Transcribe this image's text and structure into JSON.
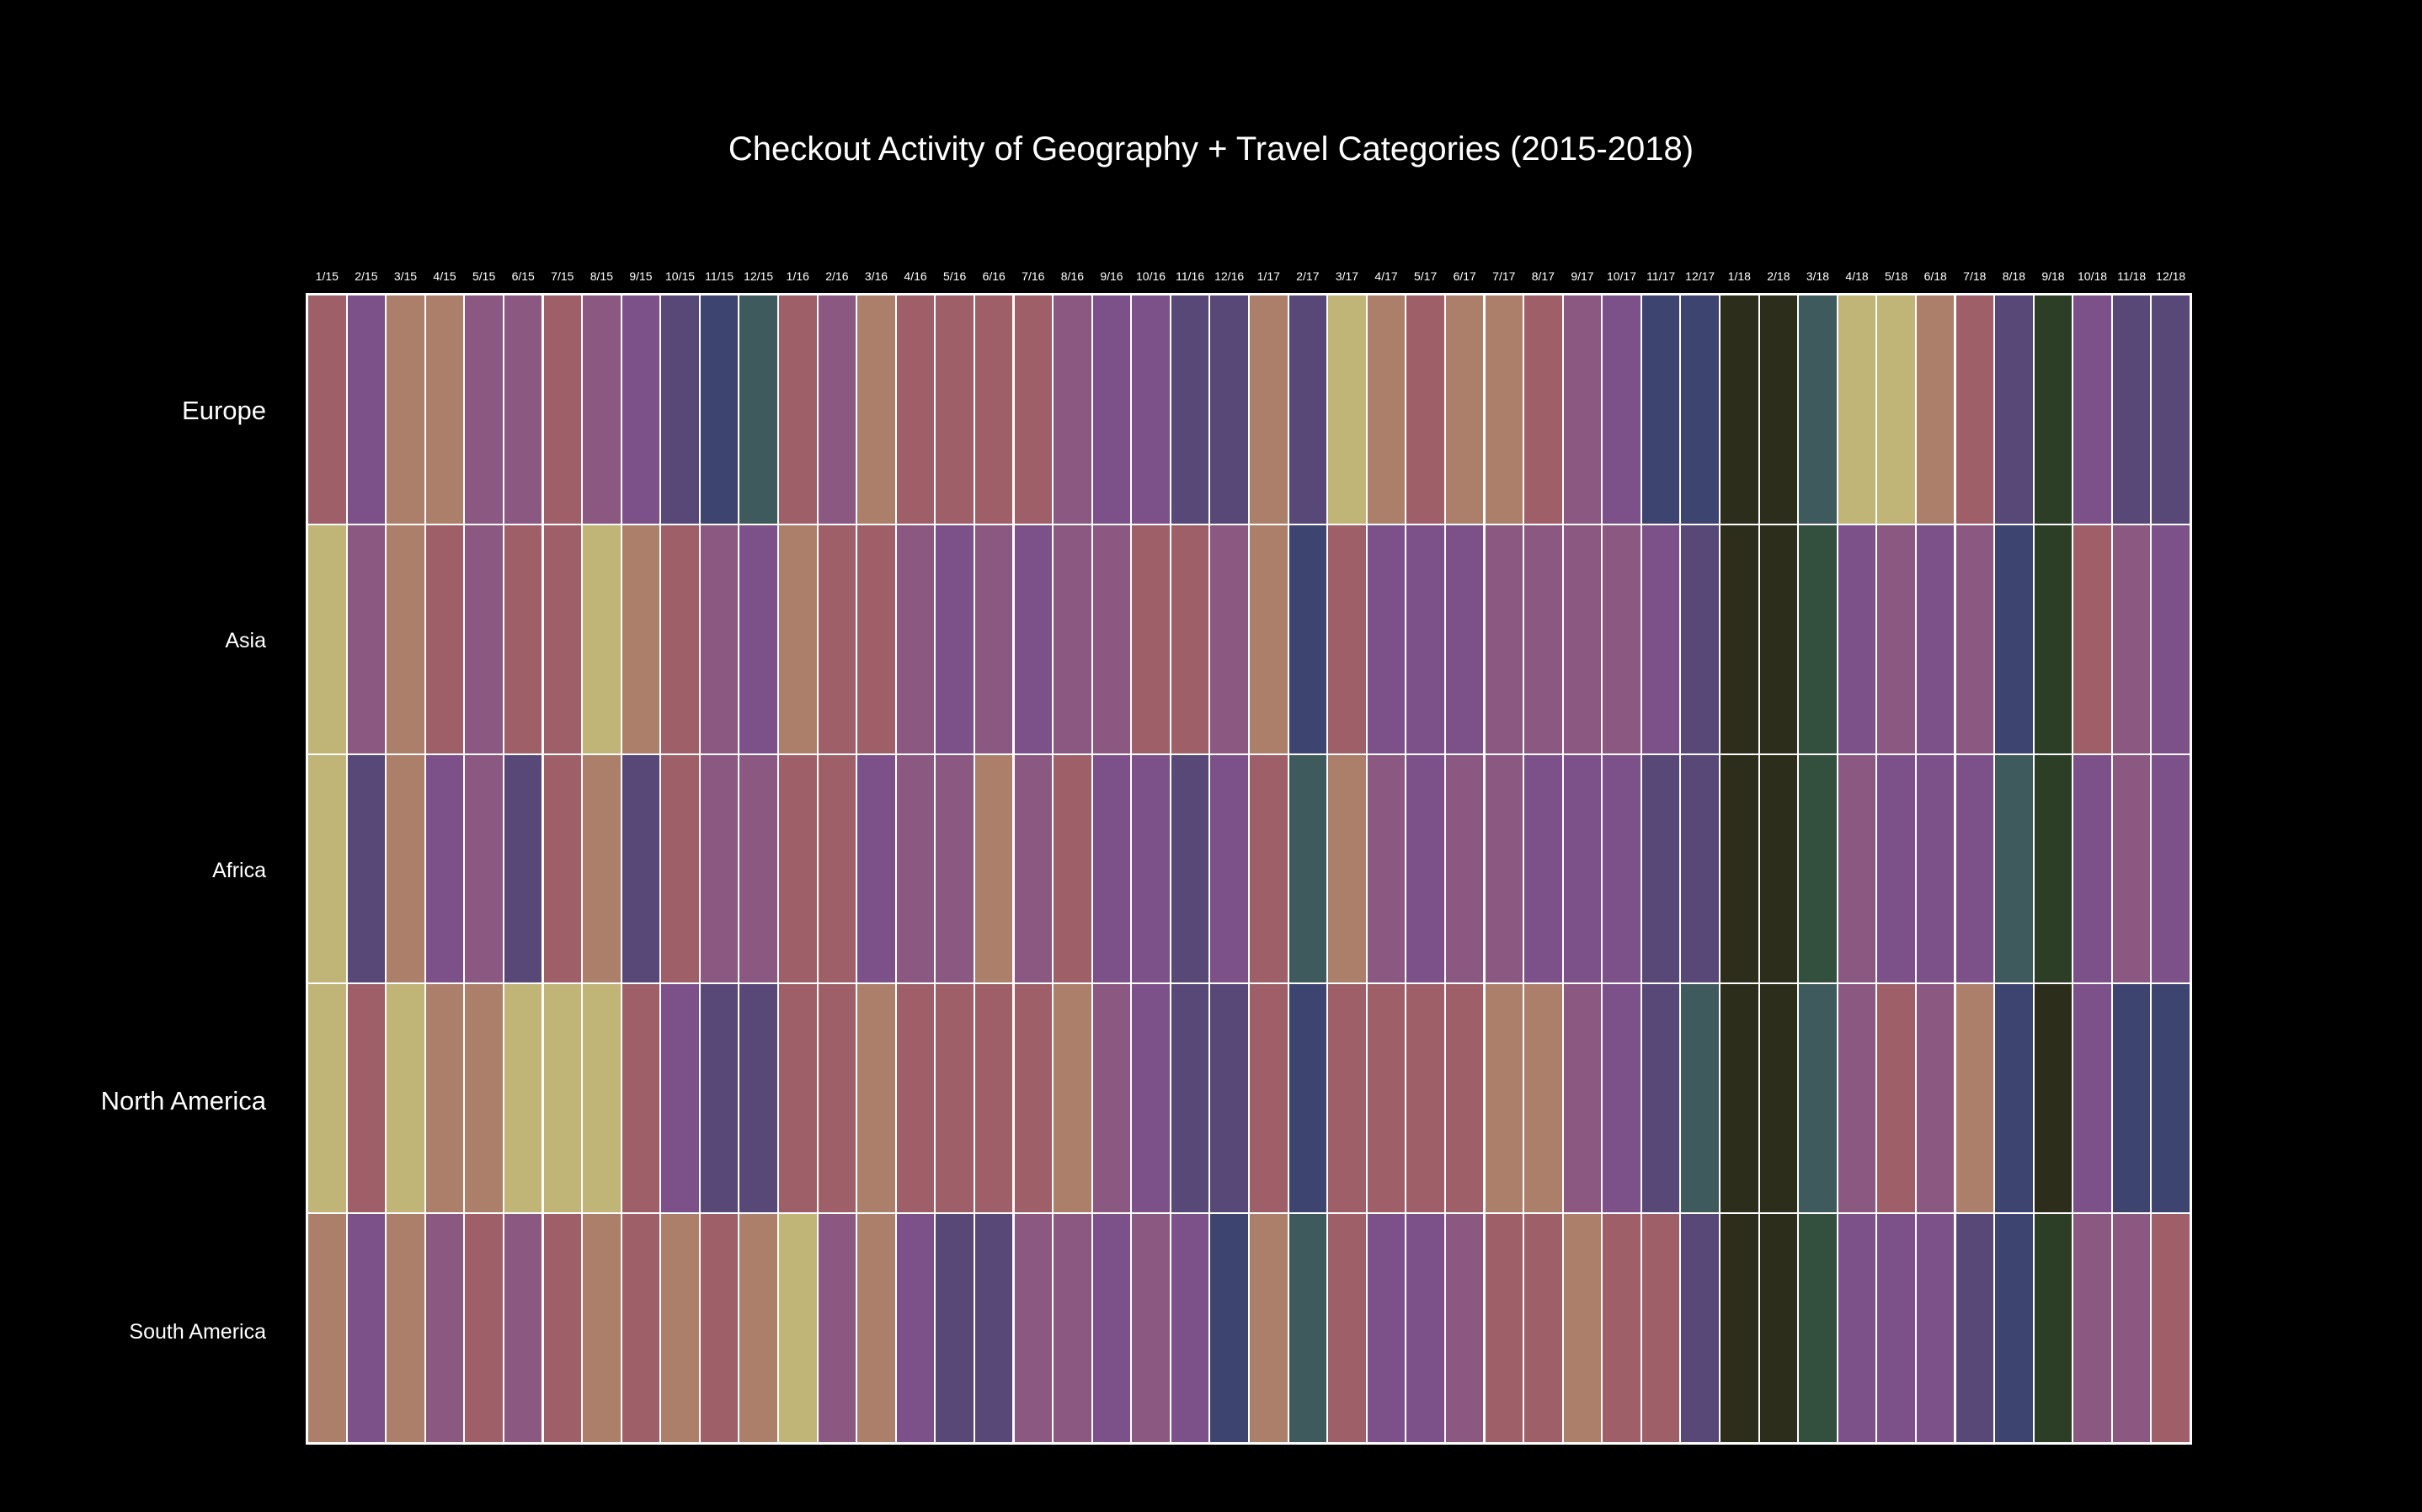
{
  "chart_data": {
    "type": "heatmap",
    "title": "Checkout Activity of Geography + Travel Categories (2015-2018)",
    "xlabel": "",
    "ylabel": "",
    "x_categories": [
      "1/15",
      "2/15",
      "3/15",
      "4/15",
      "5/15",
      "6/15",
      "7/15",
      "8/15",
      "9/15",
      "10/15",
      "11/15",
      "12/15",
      "1/16",
      "2/16",
      "3/16",
      "4/16",
      "5/16",
      "6/16",
      "7/16",
      "8/16",
      "9/16",
      "10/16",
      "11/16",
      "12/16",
      "1/17",
      "2/17",
      "3/17",
      "4/17",
      "5/17",
      "6/17",
      "7/17",
      "8/17",
      "9/17",
      "10/17",
      "11/17",
      "12/17",
      "1/18",
      "2/18",
      "3/18",
      "4/18",
      "5/18",
      "6/18",
      "7/18",
      "8/18",
      "9/18",
      "10/18",
      "11/18",
      "12/18"
    ],
    "y_categories": [
      "Europe",
      "Asia",
      "Africa",
      "North America",
      "South America"
    ],
    "value_scale": "relative checkout activity level 0 (lowest) to 10 (highest), estimated from cell color",
    "palette": [
      "#2d2d1b",
      "#2c3f26",
      "#33503e",
      "#3e5a5c",
      "#3d4470",
      "#584878",
      "#7c5088",
      "#8a5880",
      "#9e5f68",
      "#ab7f69",
      "#c0b476"
    ],
    "values": [
      [
        8,
        6,
        9,
        9,
        7,
        7,
        8,
        7,
        6,
        5,
        4,
        3,
        8,
        7,
        9,
        8,
        8,
        8,
        8,
        7,
        6,
        6,
        5,
        5,
        9,
        5,
        10,
        9,
        8,
        9,
        9,
        8,
        7,
        6,
        4,
        4,
        0,
        0,
        3,
        10,
        10,
        9,
        8,
        5,
        1,
        6,
        5,
        5
      ],
      [
        10,
        7,
        9,
        8,
        7,
        8,
        8,
        10,
        9,
        8,
        7,
        6,
        9,
        8,
        8,
        7,
        6,
        7,
        6,
        7,
        7,
        8,
        8,
        7,
        9,
        4,
        8,
        6,
        6,
        6,
        7,
        7,
        7,
        7,
        6,
        5,
        0,
        0,
        2,
        6,
        7,
        6,
        7,
        4,
        1,
        8,
        7,
        6
      ],
      [
        10,
        5,
        9,
        6,
        7,
        5,
        8,
        9,
        5,
        8,
        7,
        7,
        8,
        8,
        6,
        7,
        7,
        9,
        7,
        8,
        6,
        6,
        5,
        6,
        8,
        3,
        9,
        7,
        6,
        7,
        7,
        6,
        6,
        6,
        5,
        5,
        0,
        0,
        2,
        7,
        6,
        6,
        6,
        3,
        1,
        6,
        7,
        6
      ],
      [
        10,
        8,
        10,
        9,
        9,
        10,
        10,
        10,
        8,
        6,
        5,
        5,
        8,
        8,
        9,
        8,
        8,
        8,
        8,
        9,
        7,
        6,
        5,
        5,
        8,
        4,
        8,
        8,
        8,
        8,
        9,
        9,
        7,
        6,
        5,
        3,
        0,
        0,
        3,
        7,
        8,
        7,
        9,
        4,
        0,
        6,
        4,
        4
      ],
      [
        9,
        6,
        9,
        7,
        8,
        7,
        8,
        9,
        8,
        9,
        8,
        9,
        10,
        7,
        9,
        6,
        5,
        5,
        7,
        7,
        6,
        7,
        6,
        4,
        9,
        3,
        8,
        6,
        6,
        7,
        8,
        8,
        9,
        8,
        8,
        5,
        0,
        0,
        2,
        6,
        6,
        6,
        5,
        4,
        1,
        7,
        7,
        8
      ]
    ]
  }
}
